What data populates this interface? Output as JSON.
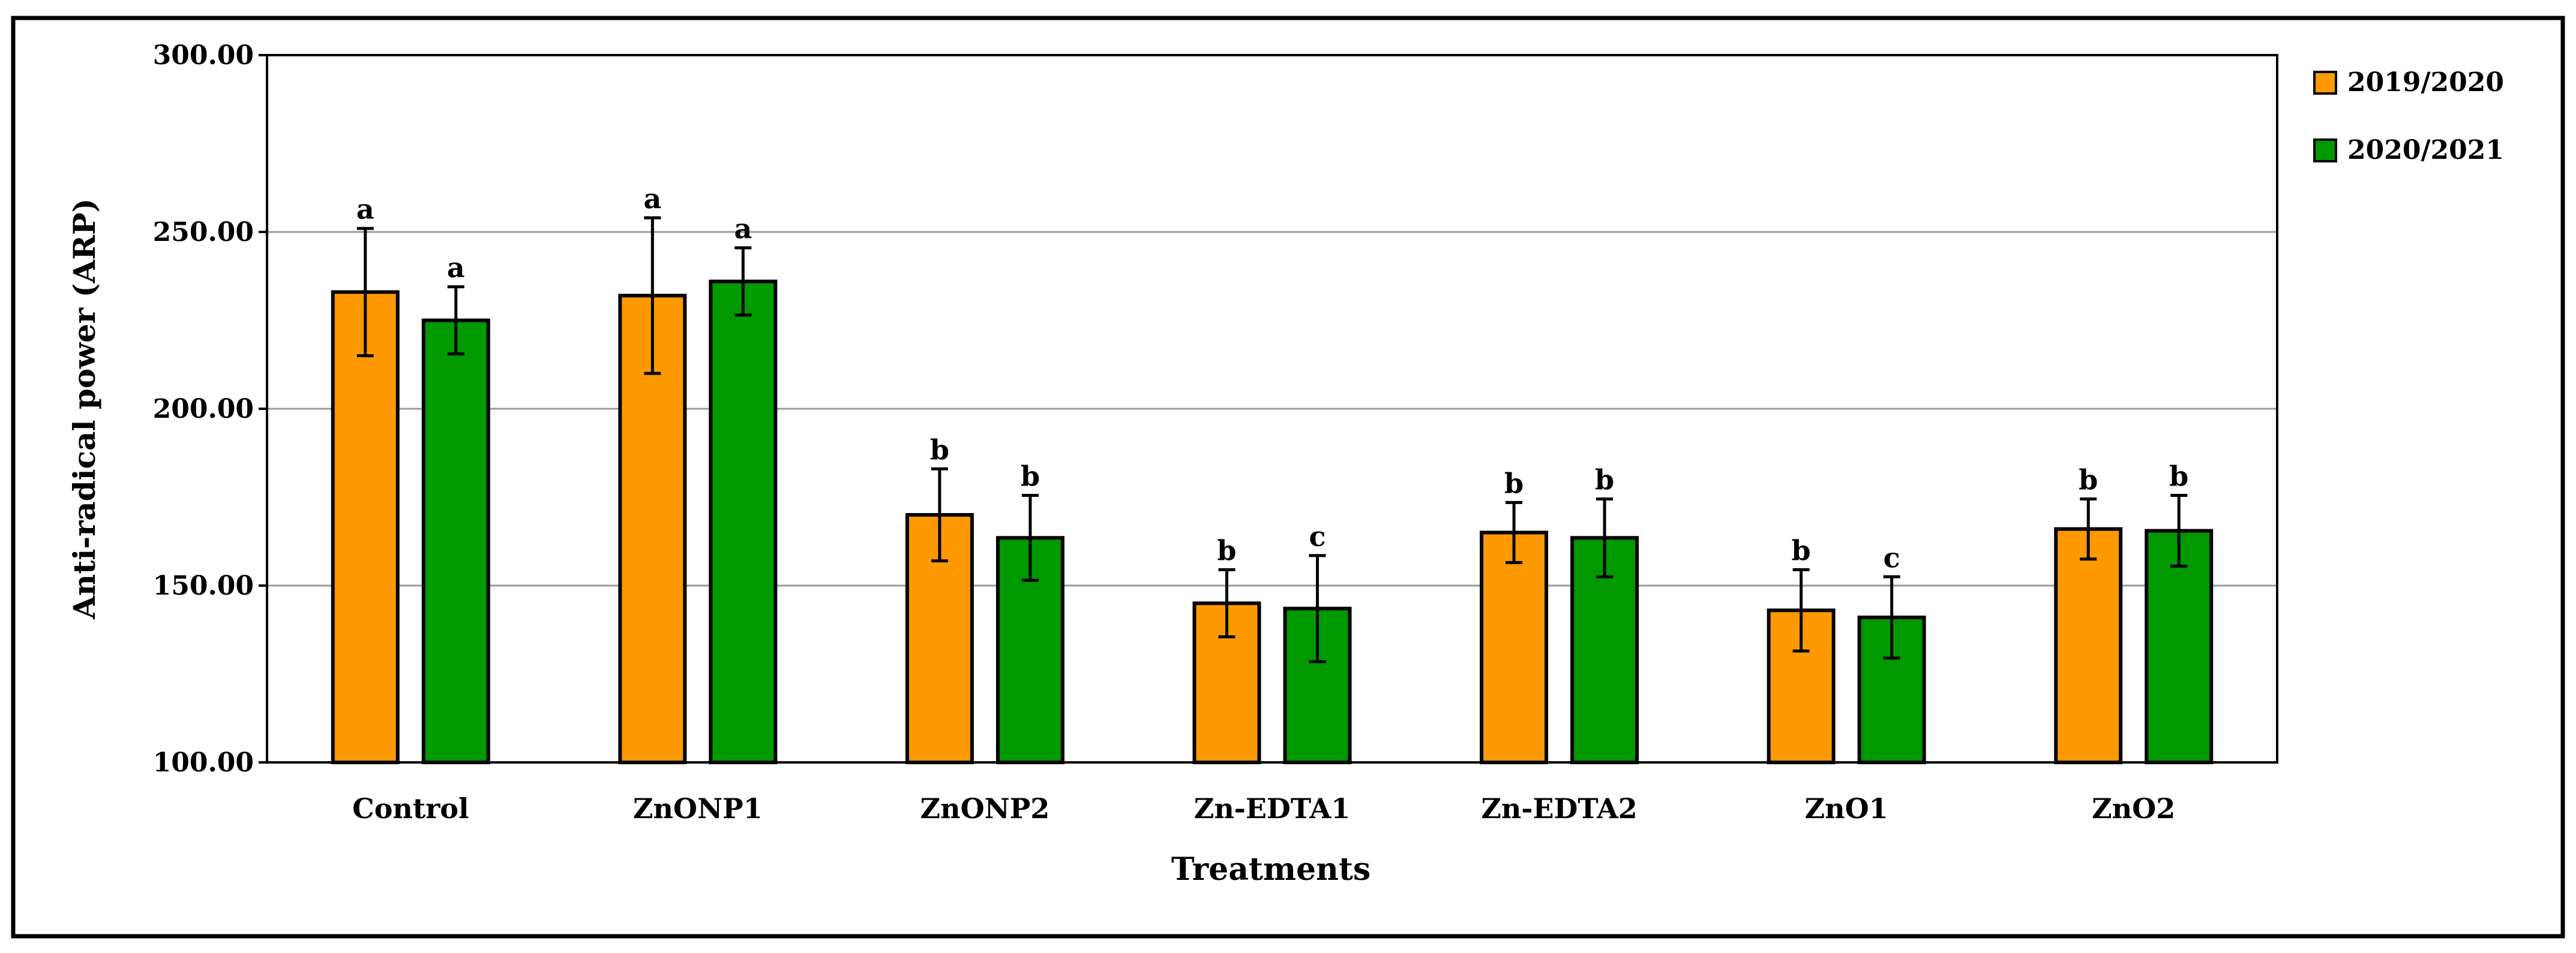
{
  "chart_data": {
    "type": "bar",
    "title": "",
    "xlabel": "Treatments",
    "ylabel": "Anti-radical power (ARP)",
    "ylim": [
      100,
      300
    ],
    "yticks": [
      "100.00",
      "150.00",
      "200.00",
      "250.00",
      "300.00"
    ],
    "ytick_values": [
      100,
      150,
      200,
      250,
      300
    ],
    "grid": true,
    "legend_position": "right",
    "categories": [
      "Control",
      "ZnONP1",
      "ZnONP2",
      "Zn-EDTA1",
      "Zn-EDTA2",
      "ZnO1",
      "ZnO2"
    ],
    "series": [
      {
        "name": "2019/2020",
        "color": "#FF9900",
        "values": [
          233,
          232,
          170,
          145,
          165,
          143,
          166
        ],
        "errors": [
          18,
          22,
          13,
          9.5,
          8.5,
          11.5,
          8.5
        ],
        "letters": [
          "a",
          "a",
          "b",
          "b",
          "b",
          "b",
          "b"
        ]
      },
      {
        "name": "2020/2021",
        "color": "#009900",
        "values": [
          225,
          236,
          163.5,
          143.5,
          163.5,
          141,
          165.5
        ],
        "errors": [
          9.5,
          9.5,
          12,
          15,
          11,
          11.5,
          10
        ],
        "letters": [
          "a",
          "a",
          "b",
          "c",
          "b",
          "c",
          "b"
        ]
      }
    ]
  }
}
